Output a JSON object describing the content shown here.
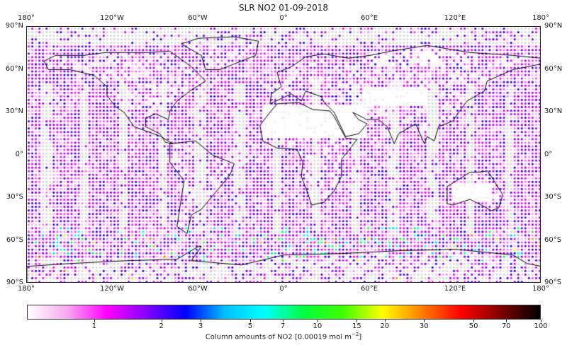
{
  "chart_data": {
    "type": "scatter",
    "title": "SLR NO2 01-09-2018",
    "projection": "PlateCarree",
    "xlabel": "",
    "ylabel": "",
    "x_ticks_top": [
      "180°",
      "120°W",
      "60°W",
      "0°",
      "60°E",
      "120°E",
      "180°"
    ],
    "x_ticks_bottom": [
      "180°",
      "120°W",
      "60°W",
      "0°",
      "60°E",
      "120°E",
      "180°"
    ],
    "y_ticks_left": [
      "90°N",
      "60°N",
      "30°N",
      "0°",
      "30°S",
      "60°S",
      "90°S"
    ],
    "y_ticks_right": [
      "90°N",
      "60°N",
      "30°N",
      "0°",
      "30°S",
      "60°S",
      "90°S"
    ],
    "xlim": [
      -180,
      180
    ],
    "ylim": [
      -90,
      90
    ],
    "grid": true,
    "grid_spacing_deg": 2.5,
    "colorbar": {
      "label": "Column amounts of NO2 [0.00019 mol m",
      "label_exp": "−2",
      "label_end": "]",
      "scale": "log",
      "range": [
        0.5,
        100
      ],
      "ticks": [
        1,
        2,
        3,
        5,
        7,
        10,
        15,
        20,
        30,
        50,
        70,
        100
      ],
      "tick_labels": [
        "1",
        "2",
        "3",
        "5",
        "7",
        "10",
        "15",
        "20",
        "30",
        "50",
        "70",
        "100"
      ],
      "colors": [
        "#ffffff",
        "#f7a8f0",
        "#ff00ff",
        "#8800ff",
        "#0000ff",
        "#00c0ff",
        "#00ffff",
        "#00ff40",
        "#40ff00",
        "#ffff00",
        "#ff8000",
        "#ff0000",
        "#800000",
        "#000000"
      ]
    },
    "missing_color": "#d9d9d9",
    "typical_value_range": [
      0.7,
      2.5
    ],
    "summary": "Global gridded NO2 column amounts; mostly 0.7–2 units (light pink to magenta), sparse higher values (3–15, blue/cyan/green) near Southern Ocean; grey = no data over deserts, poles and swath gaps."
  },
  "labels": {
    "title": "SLR NO2 01-09-2018",
    "cbar_label": "Column amounts of NO2 [0.00019 mol m",
    "cbar_exp": "−2",
    "cbar_end": "]"
  }
}
